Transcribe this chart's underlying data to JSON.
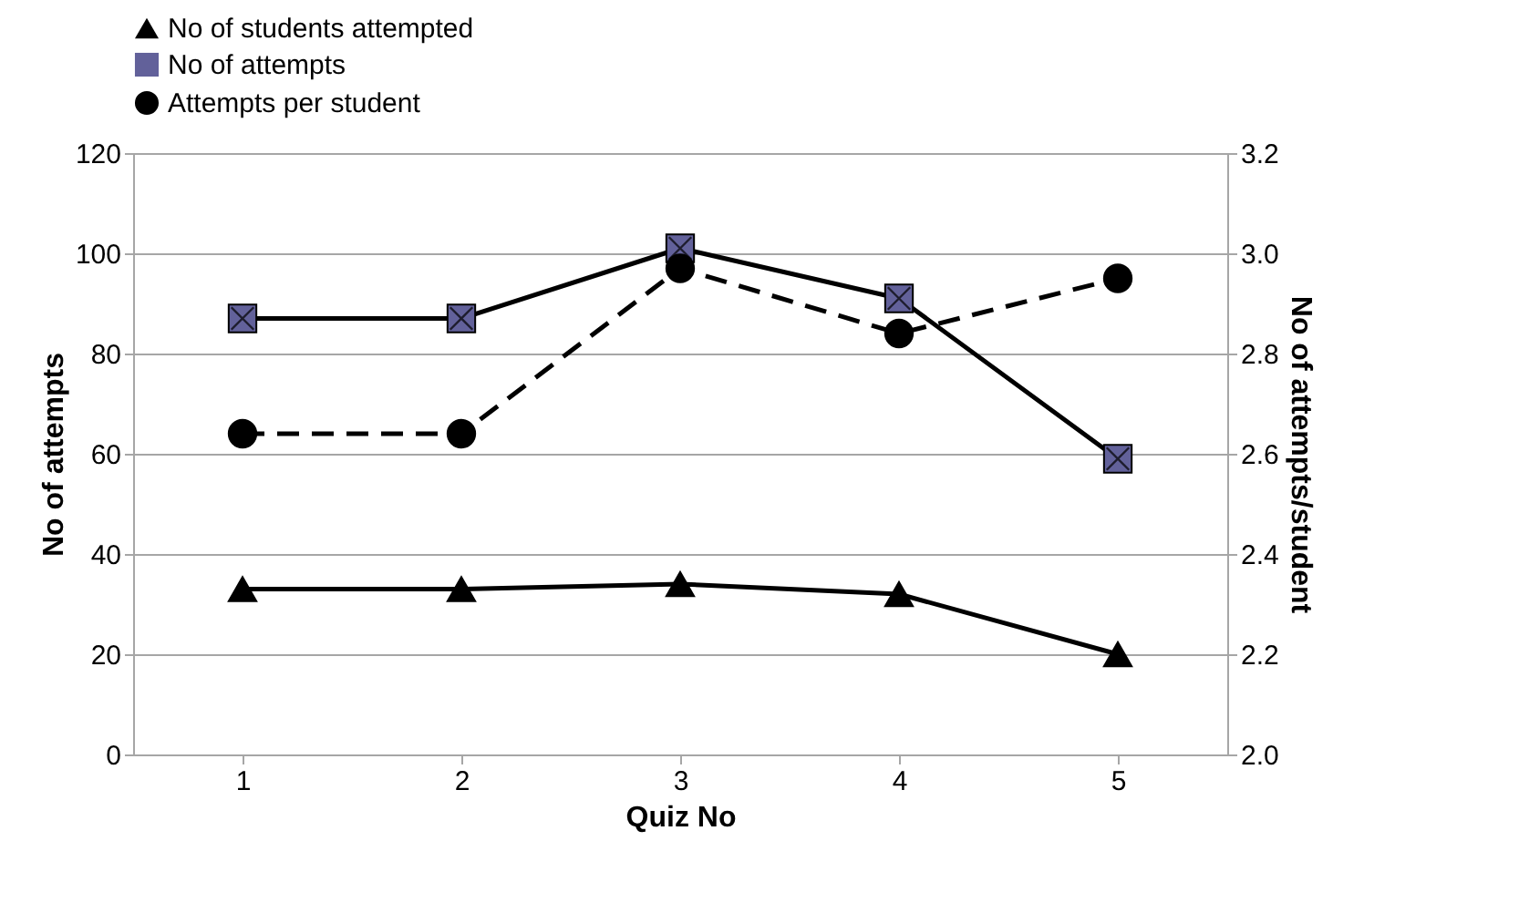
{
  "chart_data": {
    "type": "line",
    "xlabel": "Quiz No",
    "ylabel": "No of attempts",
    "y2label": "No of attempts/student",
    "categories": [
      "1",
      "2",
      "3",
      "4",
      "5"
    ],
    "series": [
      {
        "name": "No of students attempted",
        "color": "#000000",
        "marker": "triangle",
        "line_style": "solid",
        "values": [
          33,
          33,
          34,
          32,
          20
        ]
      },
      {
        "name": "No of attempts",
        "color": "#62619a",
        "marker": "square",
        "line_style": "solid",
        "values": [
          87,
          87,
          101,
          91,
          59
        ]
      },
      {
        "name": "Attempts per student",
        "color": "#000000",
        "marker": "circle",
        "line_style": "dashed",
        "axis": "y2",
        "values": [
          2.64,
          2.64,
          2.97,
          2.84,
          2.95
        ]
      }
    ],
    "ylim": [
      0,
      120
    ],
    "yticks": [
      0,
      20,
      40,
      60,
      80,
      100,
      120
    ],
    "y2lim": [
      2.0,
      3.2
    ],
    "y2ticks": [
      {
        "value": 2.0,
        "label": "2.0"
      },
      {
        "value": 2.2,
        "label": "2.2"
      },
      {
        "value": 2.4,
        "label": "2.4"
      },
      {
        "value": 2.6,
        "label": "2.6"
      },
      {
        "value": 2.8,
        "label": "2.8"
      },
      {
        "value": 3.0,
        "label": "3.0"
      },
      {
        "value": 3.2,
        "label": "3.2"
      }
    ],
    "grid": "y",
    "legend": "top"
  }
}
